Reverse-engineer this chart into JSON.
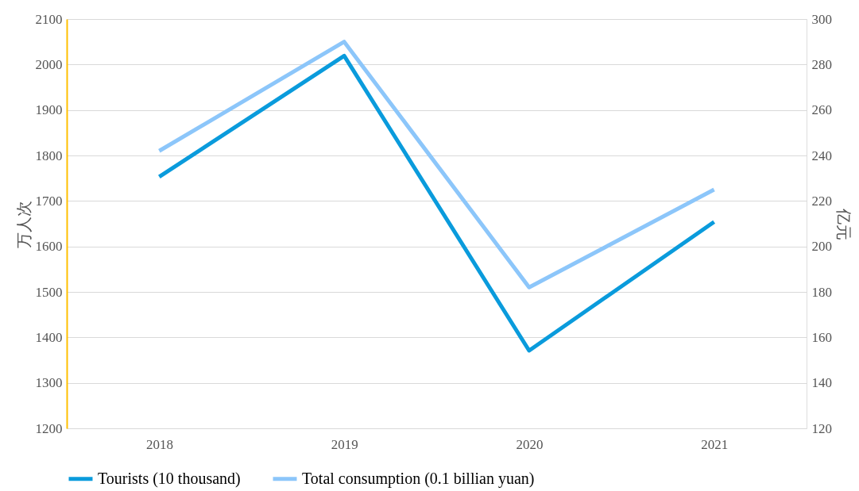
{
  "chart_data": {
    "type": "line",
    "categories": [
      "2018",
      "2019",
      "2020",
      "2021"
    ],
    "ylabel": "万人次",
    "y2label": "亿元",
    "ylim": [
      1200,
      2100
    ],
    "yticks": [
      1200,
      1300,
      1400,
      1500,
      1600,
      1700,
      1800,
      1900,
      2000,
      2100
    ],
    "y2lim": [
      120,
      300
    ],
    "y2ticks": [
      120,
      140,
      160,
      180,
      200,
      220,
      240,
      260,
      280,
      300
    ],
    "series": [
      {
        "name": "Tourists (10 thousand)",
        "color": "#0a9bdc",
        "values": [
          1753,
          2019,
          1371,
          1654
        ]
      },
      {
        "name": "Total consumption (0.1 billian yuan)",
        "color": "#8cc6fa",
        "axis": "y2",
        "values": [
          242,
          290,
          182,
          225
        ]
      }
    ],
    "grid": "y",
    "legend": "bottom",
    "marker": "none",
    "line_style": "solid"
  }
}
